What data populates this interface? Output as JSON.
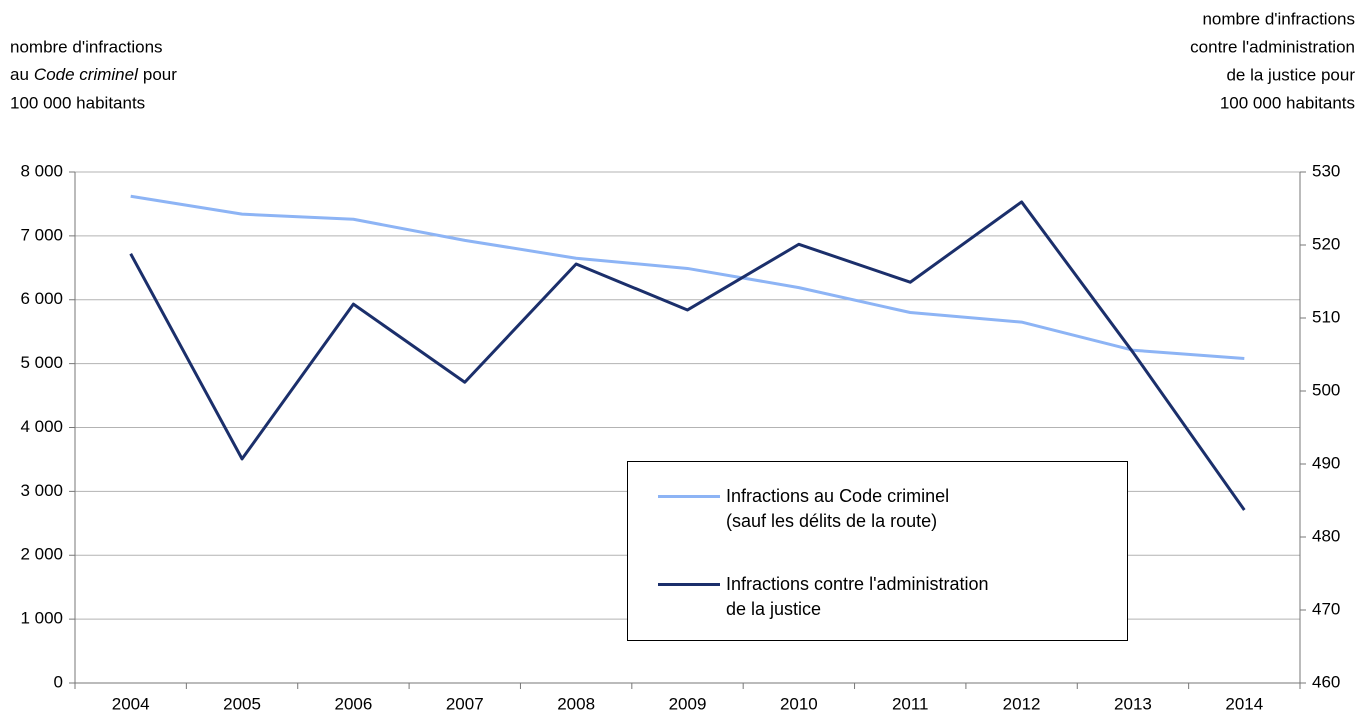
{
  "chart_data": {
    "type": "line",
    "y_label": {
      "line1": "nombre d'infractions",
      "line2_before": "au",
      "line2_italic": "Code criminel",
      "line2_after": "pour",
      "line3": "100 000 habitants"
    },
    "y2_label": [
      "nombre d'infractions",
      "contre l'administration",
      "de la justice pour",
      "100 000 habitants"
    ],
    "categories": [
      "2004",
      "2005",
      "2006",
      "2007",
      "2008",
      "2009",
      "2010",
      "2011",
      "2012",
      "2013",
      "2014"
    ],
    "series": [
      {
        "name": "Infractions au Code criminel\n(sauf les délits de la route)",
        "color": "#8db4f5",
        "values": [
          7620,
          7340,
          7260,
          6930,
          6650,
          6490,
          6190,
          5800,
          5650,
          5210,
          5080
        ]
      },
      {
        "name": "Infractions contre l'administration\nde la justice",
        "color": "#1b2f6b",
        "axis": "y2",
        "values": [
          518.8,
          490.7,
          511.9,
          501.2,
          517.4,
          511.1,
          520.1,
          514.9,
          525.9,
          505.3,
          483.7
        ]
      }
    ],
    "ylim": [
      0,
      8000
    ],
    "yticks": [
      0,
      {
        "value": 1000,
        "label": "1 000"
      },
      {
        "value": 2000,
        "label": "2 000"
      },
      {
        "value": 3000,
        "label": "3 000"
      },
      {
        "value": 4000,
        "label": "4 000"
      },
      {
        "value": 5000,
        "label": "5 000"
      },
      {
        "value": 6000,
        "label": "6 000"
      },
      {
        "value": 7000,
        "label": "7 000"
      },
      {
        "value": 8000,
        "label": "8 000"
      }
    ],
    "y2lim": [
      460,
      530
    ],
    "y2ticks": [
      460,
      470,
      480,
      490,
      500,
      510,
      520,
      530
    ],
    "grid": true
  }
}
